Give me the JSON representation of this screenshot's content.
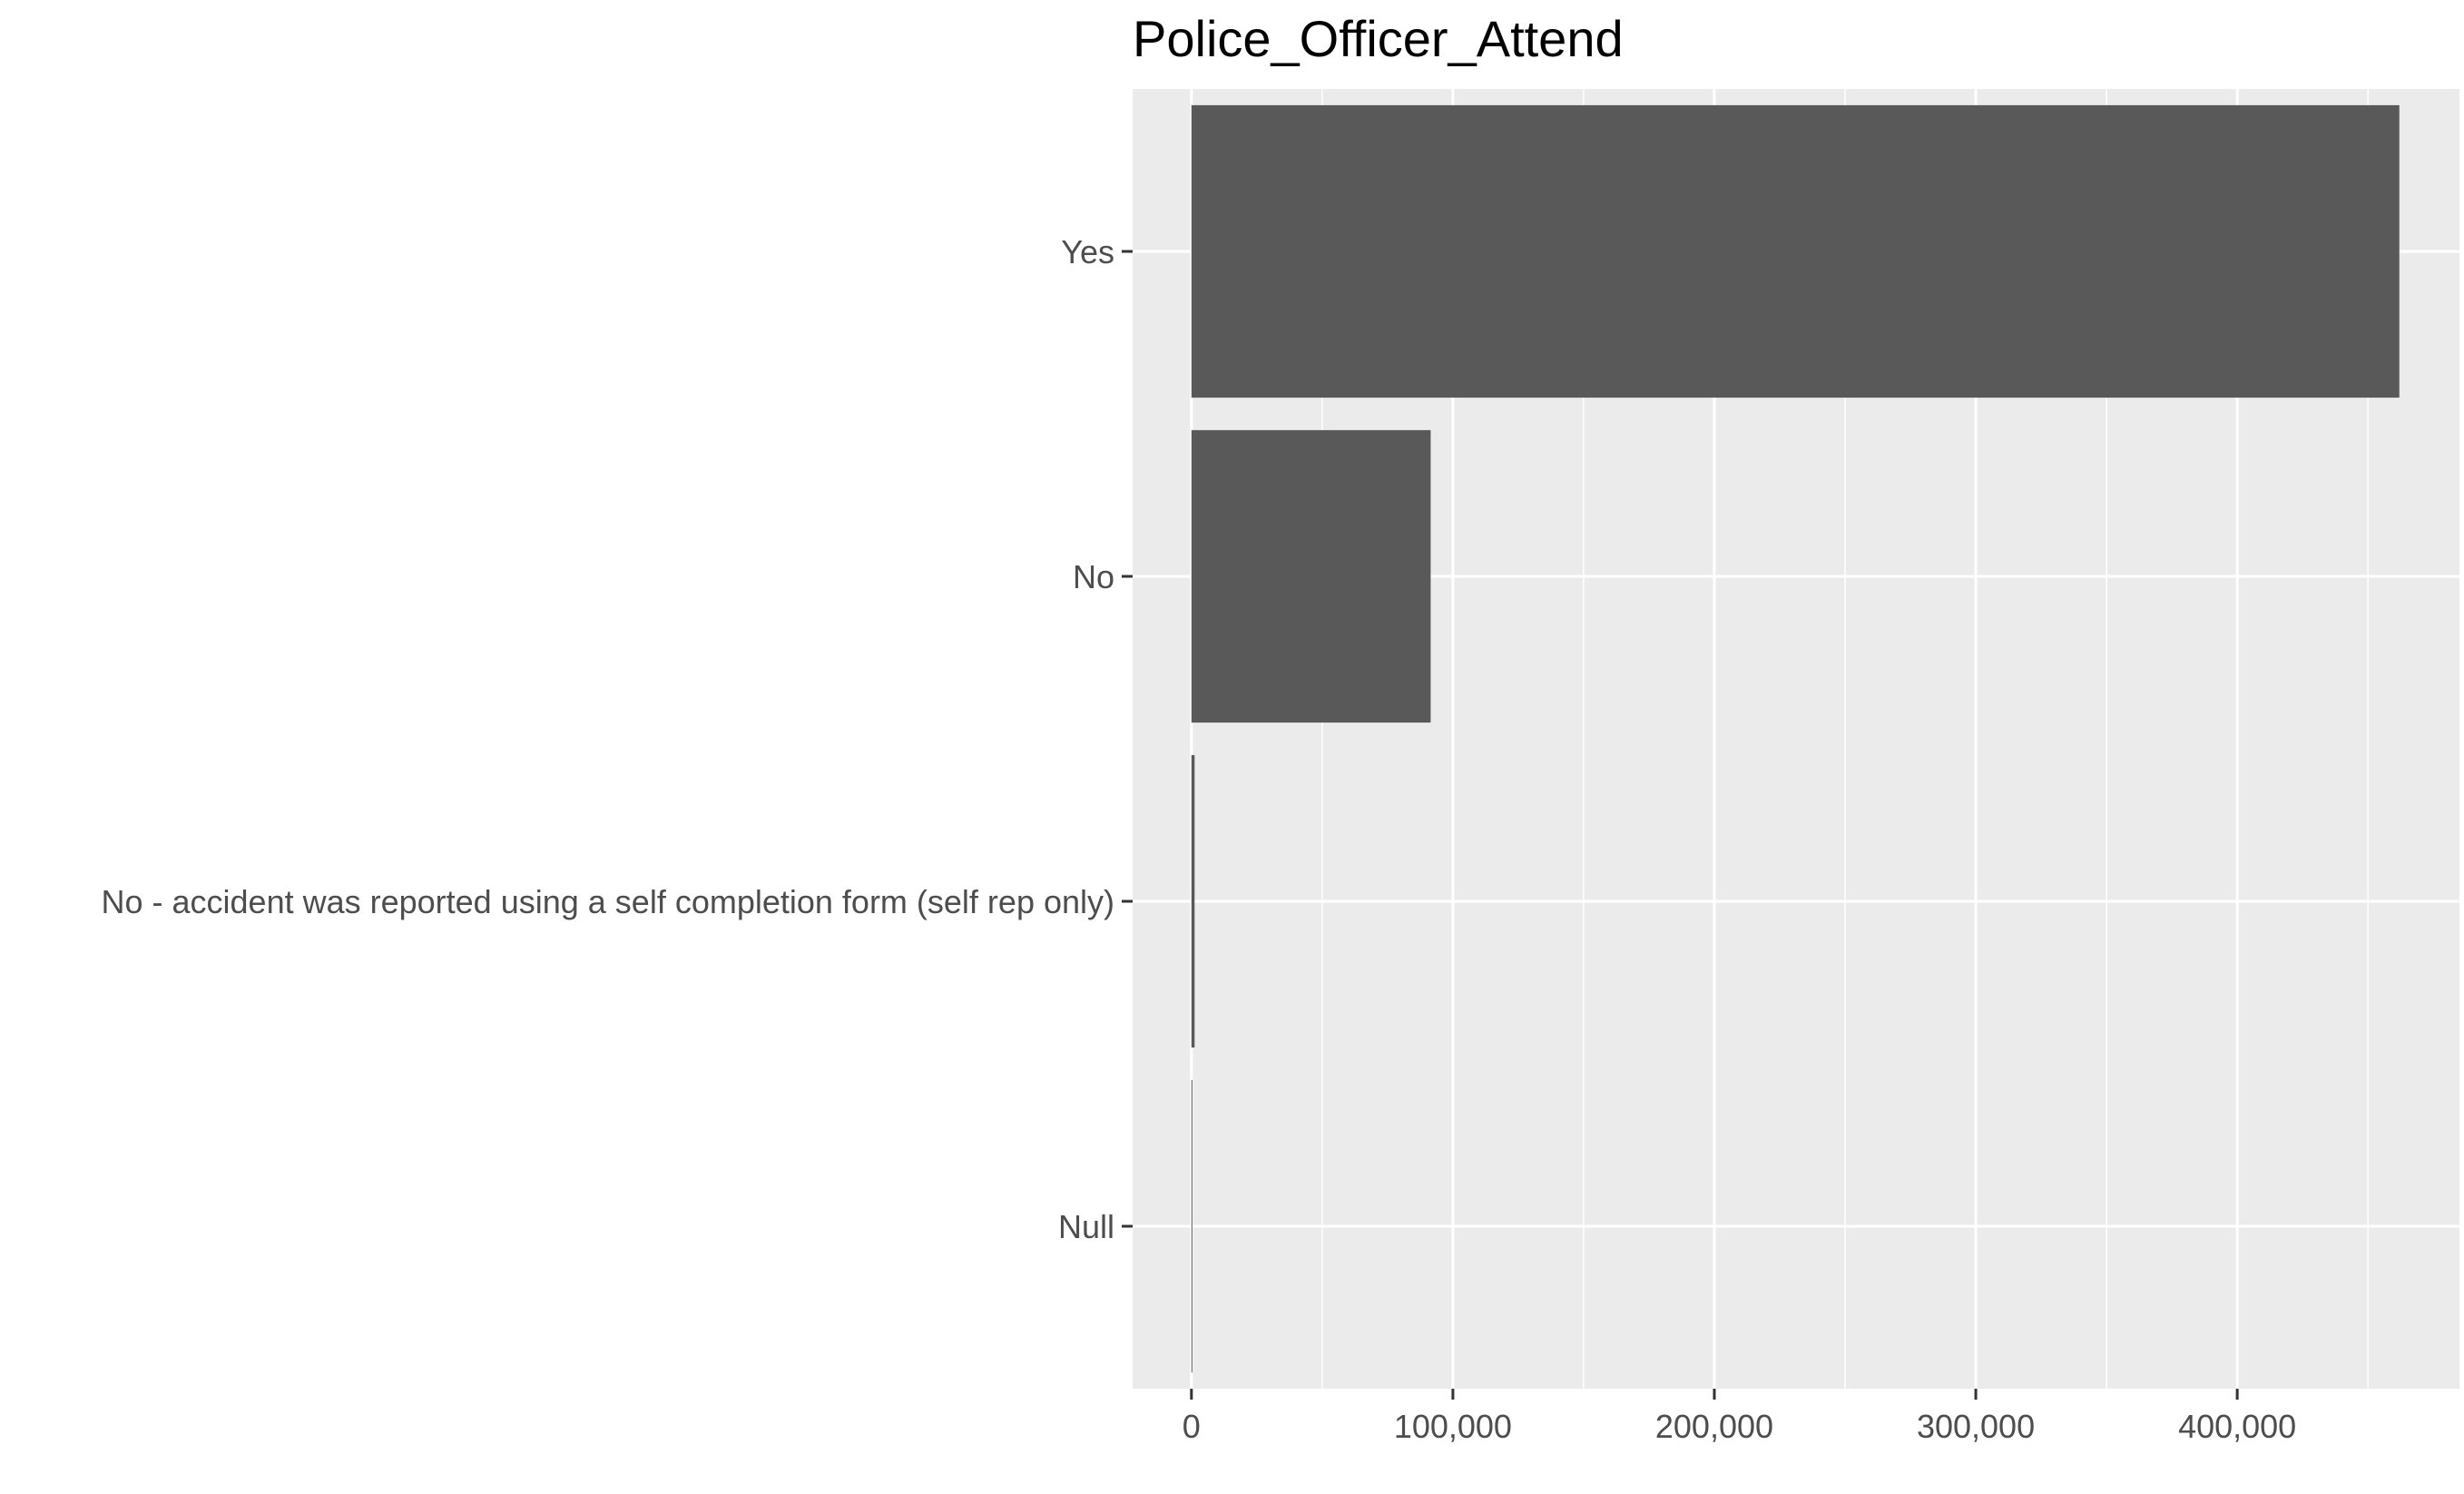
{
  "chart_data": {
    "type": "bar",
    "orientation": "horizontal",
    "title": "Police_Officer_Attend",
    "xlabel": "",
    "ylabel": "",
    "categories": [
      "Yes",
      "No",
      "No - accident was reported using a self completion  form (self rep only)",
      "Null"
    ],
    "values": [
      462000,
      91500,
      1200,
      200
    ],
    "xlim": [
      -22500,
      485000
    ],
    "x_ticks": [
      0,
      100000,
      200000,
      300000,
      400000
    ],
    "x_tick_labels": [
      "0",
      "100,000",
      "200,000",
      "300,000",
      "400,000"
    ],
    "grid": true,
    "legend": "none",
    "colors": {
      "bar": "#595959",
      "panel": "#ebebeb",
      "grid_major": "#ffffff",
      "tick_text": "#4d4d4d",
      "tick_mark": "#333333"
    }
  }
}
